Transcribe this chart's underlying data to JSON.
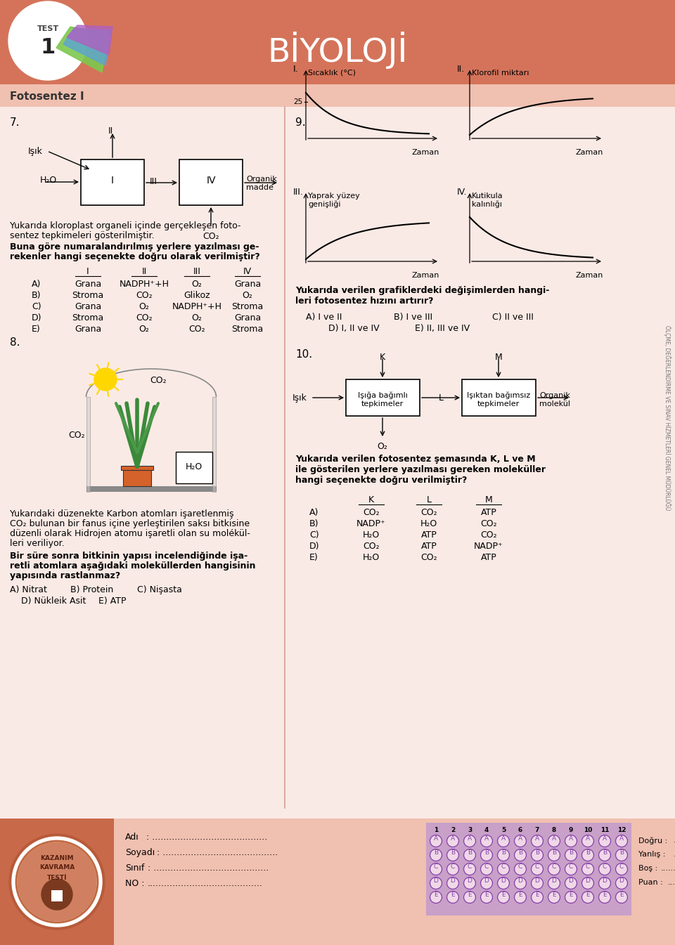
{
  "title": "BİYOLOJİ",
  "test_num": "1",
  "section_title": "Fotosentez I",
  "header_bg": "#D4735A",
  "header_light": "#EAA090",
  "section_bg": "#F0C0B0",
  "body_bg": "#FAEAE5",
  "q7_text1": "Yukarıda kloroplast organeli içinde gerçekleşen foto-",
  "q7_text2": "sentez tepkimeleri gösterilmiştir.",
  "q7_bold1": "Buna göre numaralandırılmış yerlere yazılması ge-",
  "q7_bold2": "rekenler hangi seçenekte doğru olarak verilmiştir?",
  "q7_cols": [
    "I",
    "II",
    "III",
    "IV"
  ],
  "q7_rows": [
    [
      "A)",
      "Grana",
      "NADPH⁺+H",
      "O₂",
      "Grana"
    ],
    [
      "B)",
      "Stroma",
      "CO₂",
      "Glikoz",
      "O₂"
    ],
    [
      "C)",
      "Grana",
      "O₂",
      "NADPH⁺+H",
      "Stroma"
    ],
    [
      "D)",
      "Stroma",
      "CO₂",
      "O₂",
      "Grana"
    ],
    [
      "E)",
      "Grana",
      "O₂",
      "CO₂",
      "Stroma"
    ]
  ],
  "q8_text1": "Yukarıdaki düzenekte Karbon atomları işaretlenmiş",
  "q8_text2": "CO₂ bulunan bir fanus içine yerleştirilen saksı bitkisine",
  "q8_text3": "düzenli olarak Hidrojen atomu işaretli olan su molékül-",
  "q8_text4": "leri veriliyor.",
  "q8_bold1": "Bir süre sonra bitkinin yapısı incelendiğinde işa-",
  "q8_bold2": "retli atomlara aşağıdaki moleküllerden hangisinin",
  "q8_bold3": "yapısında rastlanmaz?",
  "q8_answers_row1": [
    "A) Nitrat",
    "B) Protein",
    "C) Nişasta"
  ],
  "q8_answers_row2": [
    "D) Nükleik Asit",
    "E) ATP"
  ],
  "q9_text1": "Yukarıda verilen grafiklerdeki değişimlerden hangi-",
  "q9_text2": "leri fotosentez hızını artırır?",
  "q9_answers_row1": [
    "A) I ve II",
    "B) I ve III",
    "C) II ve III"
  ],
  "q9_answers_row2": [
    "D) I, II ve IV",
    "E) II, III ve IV"
  ],
  "q10_text1": "Yukarıda verilen fotosentez şemasında K, L ve M",
  "q10_text2": "ile gösterilen yerlere yazılması gereken moleküller",
  "q10_text3": "hangi seçenekte doğru verilmiştir?",
  "q10_cols": [
    "K",
    "L",
    "M"
  ],
  "q10_rows": [
    [
      "A)",
      "CO₂",
      "CO₂",
      "ATP"
    ],
    [
      "B)",
      "NADP⁺",
      "H₂O",
      "CO₂"
    ],
    [
      "C)",
      "H₂O",
      "ATP",
      "CO₂"
    ],
    [
      "D)",
      "CO₂",
      "ATP",
      "NADP⁺"
    ],
    [
      "E)",
      "H₂O",
      "CO₂",
      "ATP"
    ]
  ],
  "answer_grid_nums": [
    "1",
    "2",
    "3",
    "4",
    "5",
    "6",
    "7",
    "8",
    "9",
    "10",
    "11",
    "12"
  ],
  "sidebar_text": "ÖLÇME, DEĞERLENDİRME VE SINAV HİZMETLERİ GENEL MÜDÜRLÜĞÜ"
}
